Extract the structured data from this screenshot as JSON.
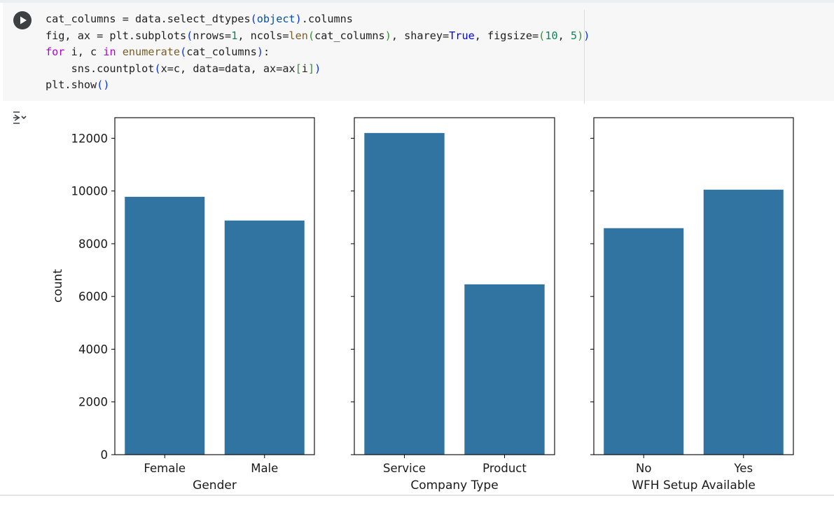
{
  "cell": {
    "run_button": "run-cell",
    "output_toggle": "collapse-output-icon",
    "code_lines": [
      "cat_columns = data.select_dtypes(object).columns",
      "fig, ax = plt.subplots(nrows=1, ncols=len(cat_columns), sharey=True, figsize=(10, 5))",
      "for i, c in enumerate(cat_columns):",
      "    sns.countplot(x=c, data=data, ax=ax[i])",
      "plt.show()"
    ]
  },
  "colors": {
    "bar": "#3274a1",
    "code_background": "#f7f7f7"
  },
  "chart_data": [
    {
      "type": "bar",
      "categories": [
        "Female",
        "Male"
      ],
      "values": [
        9780,
        8880
      ],
      "xlabel": "Gender",
      "ylabel": "count",
      "ylim": [
        0,
        12780
      ],
      "yticks": [
        0,
        2000,
        4000,
        6000,
        8000,
        10000,
        12000
      ],
      "ytick_labels": [
        "0",
        "2000",
        "4000",
        "6000",
        "8000",
        "10000",
        "12000"
      ]
    },
    {
      "type": "bar",
      "categories": [
        "Service",
        "Product"
      ],
      "values": [
        12200,
        6460
      ],
      "xlabel": "Company Type",
      "ylabel": "",
      "ylim": [
        0,
        12780
      ]
    },
    {
      "type": "bar",
      "categories": [
        "No",
        "Yes"
      ],
      "values": [
        8590,
        10050
      ],
      "xlabel": "WFH Setup Available",
      "ylabel": "",
      "ylim": [
        0,
        12780
      ]
    }
  ]
}
